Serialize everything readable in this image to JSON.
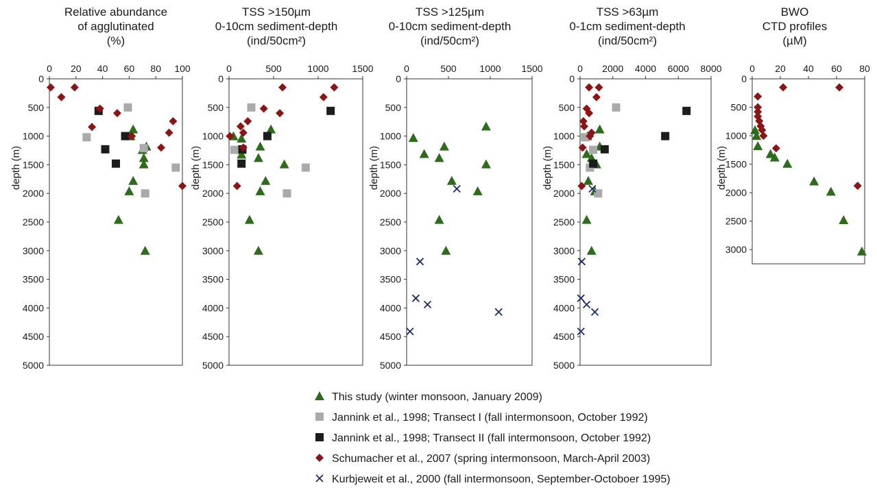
{
  "chart_data": [
    {
      "type": "scatter",
      "title": [
        "Relative abundance",
        "of agglutinated",
        "(%)"
      ],
      "ylabel": "depth (m)",
      "xlim": [
        0,
        100
      ],
      "ylim": [
        0,
        5000
      ],
      "y_inverted": true,
      "xticks": [
        "0",
        "20",
        "40",
        "60",
        "80",
        "100"
      ],
      "yticks": [
        "0",
        "500",
        "1000",
        "1500",
        "2000",
        "2500",
        "3000",
        "3500",
        "4000",
        "4500",
        "5000"
      ],
      "series": [
        {
          "key": "this_study",
          "points": [
            [
              63,
              880
            ],
            [
              61,
              1000
            ],
            [
              73,
              1180
            ],
            [
              70,
              1240
            ],
            [
              71,
              1380
            ],
            [
              71,
              1490
            ],
            [
              63,
              1780
            ],
            [
              60,
              1960
            ],
            [
              52,
              2460
            ],
            [
              72,
              3000
            ]
          ]
        },
        {
          "key": "jannink_I",
          "points": [
            [
              59,
              500
            ],
            [
              28,
              1020
            ],
            [
              71,
              1210
            ],
            [
              95,
              1550
            ],
            [
              72,
              2000
            ]
          ]
        },
        {
          "key": "jannink_II",
          "points": [
            [
              37,
              560
            ],
            [
              57,
              1000
            ],
            [
              42,
              1230
            ],
            [
              50,
              1480
            ]
          ]
        },
        {
          "key": "schumacher",
          "points": [
            [
              1,
              150
            ],
            [
              19,
              150
            ],
            [
              9,
              320
            ],
            [
              38,
              520
            ],
            [
              51,
              600
            ],
            [
              32,
              840
            ],
            [
              90,
              940
            ],
            [
              93,
              740
            ],
            [
              62,
              1000
            ],
            [
              84,
              1200
            ],
            [
              100,
              1870
            ]
          ]
        }
      ]
    },
    {
      "type": "scatter",
      "title": [
        "TSS >150µm",
        "0-10cm sediment-depth",
        "(ind/50cm²)"
      ],
      "ylabel": "depth (m)",
      "xlim": [
        0,
        1500
      ],
      "ylim": [
        0,
        5000
      ],
      "y_inverted": true,
      "xticks": [
        "0",
        "500",
        "1000",
        "1500"
      ],
      "yticks": [
        "0",
        "500",
        "1000",
        "1500",
        "2000",
        "2500",
        "3000",
        "3500",
        "4000",
        "4500",
        "5000"
      ],
      "series": [
        {
          "key": "this_study",
          "points": [
            [
              470,
              880
            ],
            [
              50,
              1000
            ],
            [
              140,
              1040
            ],
            [
              350,
              1180
            ],
            [
              140,
              1240
            ],
            [
              140,
              1320
            ],
            [
              330,
              1380
            ],
            [
              620,
              1490
            ],
            [
              410,
              1780
            ],
            [
              350,
              1960
            ],
            [
              230,
              2460
            ],
            [
              330,
              3000
            ]
          ]
        },
        {
          "key": "jannink_I",
          "points": [
            [
              250,
              500
            ],
            [
              60,
              1240
            ],
            [
              860,
              1550
            ],
            [
              650,
              2000
            ]
          ]
        },
        {
          "key": "jannink_II",
          "points": [
            [
              1140,
              560
            ],
            [
              430,
              1000
            ],
            [
              150,
              1230
            ],
            [
              140,
              1480
            ]
          ]
        },
        {
          "key": "schumacher",
          "points": [
            [
              600,
              150
            ],
            [
              1180,
              150
            ],
            [
              1060,
              320
            ],
            [
              390,
              520
            ],
            [
              570,
              600
            ],
            [
              130,
              830
            ],
            [
              160,
              940
            ],
            [
              210,
              740
            ],
            [
              10,
              1000
            ],
            [
              160,
              1200
            ],
            [
              90,
              1870
            ]
          ]
        }
      ]
    },
    {
      "type": "scatter",
      "title": [
        "TSS >125µm",
        "0-10cm sediment-depth",
        "(ind/50cm²)"
      ],
      "ylabel": "depth (m)",
      "xlim": [
        0,
        1500
      ],
      "ylim": [
        0,
        5000
      ],
      "y_inverted": true,
      "xticks": [
        "0",
        "500",
        "1000",
        "1500"
      ],
      "yticks": [
        "0",
        "500",
        "1000",
        "1500",
        "2000",
        "2500",
        "3000",
        "3500",
        "4000",
        "4500",
        "5000"
      ],
      "series": [
        {
          "key": "this_study",
          "points": [
            [
              950,
              830
            ],
            [
              80,
              1030
            ],
            [
              450,
              1180
            ],
            [
              210,
              1310
            ],
            [
              390,
              1380
            ],
            [
              950,
              1490
            ],
            [
              540,
              1780
            ],
            [
              850,
              1960
            ],
            [
              390,
              2460
            ],
            [
              470,
              3000
            ]
          ]
        },
        {
          "key": "kurbjeweit",
          "points": [
            [
              600,
              1920
            ],
            [
              160,
              3190
            ],
            [
              110,
              3830
            ],
            [
              250,
              3940
            ],
            [
              1100,
              4070
            ],
            [
              40,
              4410
            ]
          ]
        }
      ]
    },
    {
      "type": "scatter",
      "title": [
        "TSS >63µm",
        "0-1cm sediment-depth",
        "(ind/50cm²)"
      ],
      "ylabel": "depth (m)",
      "xlim": [
        0,
        8000
      ],
      "ylim": [
        0,
        5000
      ],
      "y_inverted": true,
      "xticks": [
        "0",
        "2000",
        "4000",
        "6000",
        "8000"
      ],
      "yticks": [
        "0",
        "500",
        "1000",
        "1500",
        "2000",
        "2500",
        "3000",
        "3500",
        "4000",
        "4500",
        "5000"
      ],
      "series": [
        {
          "key": "this_study",
          "points": [
            [
              1200,
              880
            ],
            [
              450,
              1000
            ],
            [
              1200,
              1180
            ],
            [
              400,
              1310
            ],
            [
              700,
              1380
            ],
            [
              1000,
              1490
            ],
            [
              500,
              1780
            ],
            [
              900,
              1960
            ],
            [
              400,
              2460
            ],
            [
              700,
              3000
            ]
          ]
        },
        {
          "key": "jannink_I",
          "points": [
            [
              2200,
              500
            ],
            [
              300,
              1020
            ],
            [
              800,
              1240
            ],
            [
              600,
              1550
            ],
            [
              1100,
              2000
            ]
          ]
        },
        {
          "key": "jannink_II",
          "points": [
            [
              6500,
              560
            ],
            [
              5200,
              1000
            ],
            [
              1500,
              1230
            ],
            [
              800,
              1480
            ]
          ]
        },
        {
          "key": "schumacher",
          "points": [
            [
              550,
              150
            ],
            [
              1150,
              150
            ],
            [
              1000,
              320
            ],
            [
              400,
              520
            ],
            [
              550,
              600
            ],
            [
              250,
              830
            ],
            [
              200,
              740
            ],
            [
              700,
              940
            ],
            [
              150,
              1200
            ],
            [
              100,
              1870
            ],
            [
              600,
              1000
            ]
          ]
        },
        {
          "key": "kurbjeweit",
          "points": [
            [
              750,
              1920
            ],
            [
              100,
              3190
            ],
            [
              50,
              3830
            ],
            [
              400,
              3940
            ],
            [
              900,
              4070
            ],
            [
              50,
              4410
            ]
          ]
        }
      ]
    },
    {
      "type": "scatter",
      "title": [
        "BWO",
        "CTD profiles",
        "(µM)"
      ],
      "ylabel": "depth (m)",
      "xlim": [
        0,
        80
      ],
      "ylim": [
        0,
        3250
      ],
      "y_inverted": true,
      "xticks": [
        "0",
        "20",
        "40",
        "60",
        "80"
      ],
      "yticks": [
        "0",
        "500",
        "1000",
        "1500",
        "2000",
        "2500",
        "3000"
      ],
      "series": [
        {
          "key": "this_study",
          "points": [
            [
              2,
              900
            ],
            [
              3,
              1000
            ],
            [
              4,
              1180
            ],
            [
              13,
              1320
            ],
            [
              16,
              1380
            ],
            [
              25,
              1490
            ],
            [
              44,
              1800
            ],
            [
              56,
              1980
            ],
            [
              65,
              2480
            ],
            [
              78,
              3030
            ]
          ]
        },
        {
          "key": "schumacher",
          "points": [
            [
              4,
              310
            ],
            [
              4,
              500
            ],
            [
              4,
              580
            ],
            [
              4,
              660
            ],
            [
              5,
              740
            ],
            [
              6,
              830
            ],
            [
              7,
              900
            ],
            [
              8,
              1000
            ],
            [
              17,
              1220
            ],
            [
              22,
              150
            ],
            [
              62,
              150
            ],
            [
              75,
              1880
            ]
          ]
        }
      ]
    }
  ],
  "legend": [
    {
      "key": "this_study",
      "marker": "triangle",
      "color": "#2e6b1c",
      "label": "This study (winter monsoon, January 2009)"
    },
    {
      "key": "jannink_I",
      "marker": "square",
      "color": "#aaaaaa",
      "label": "Jannink et al., 1998; Transect I (fall intermonsoon, October 1992)"
    },
    {
      "key": "jannink_II",
      "marker": "square",
      "color": "#1c1c1c",
      "label": "Jannink et al., 1998; Transect II (fall intermonsoon, October 1992)"
    },
    {
      "key": "schumacher",
      "marker": "diamond",
      "color": "#8b1414",
      "label": "Schumacher et al., 2007 (spring intermonsoon, March-April 2003)"
    },
    {
      "key": "kurbjeweit",
      "marker": "cross",
      "color": "#1c2a66",
      "label": "Kurbjeweit et al., 2000 (fall intermonsoon, September-Octoboer 1995)"
    }
  ]
}
